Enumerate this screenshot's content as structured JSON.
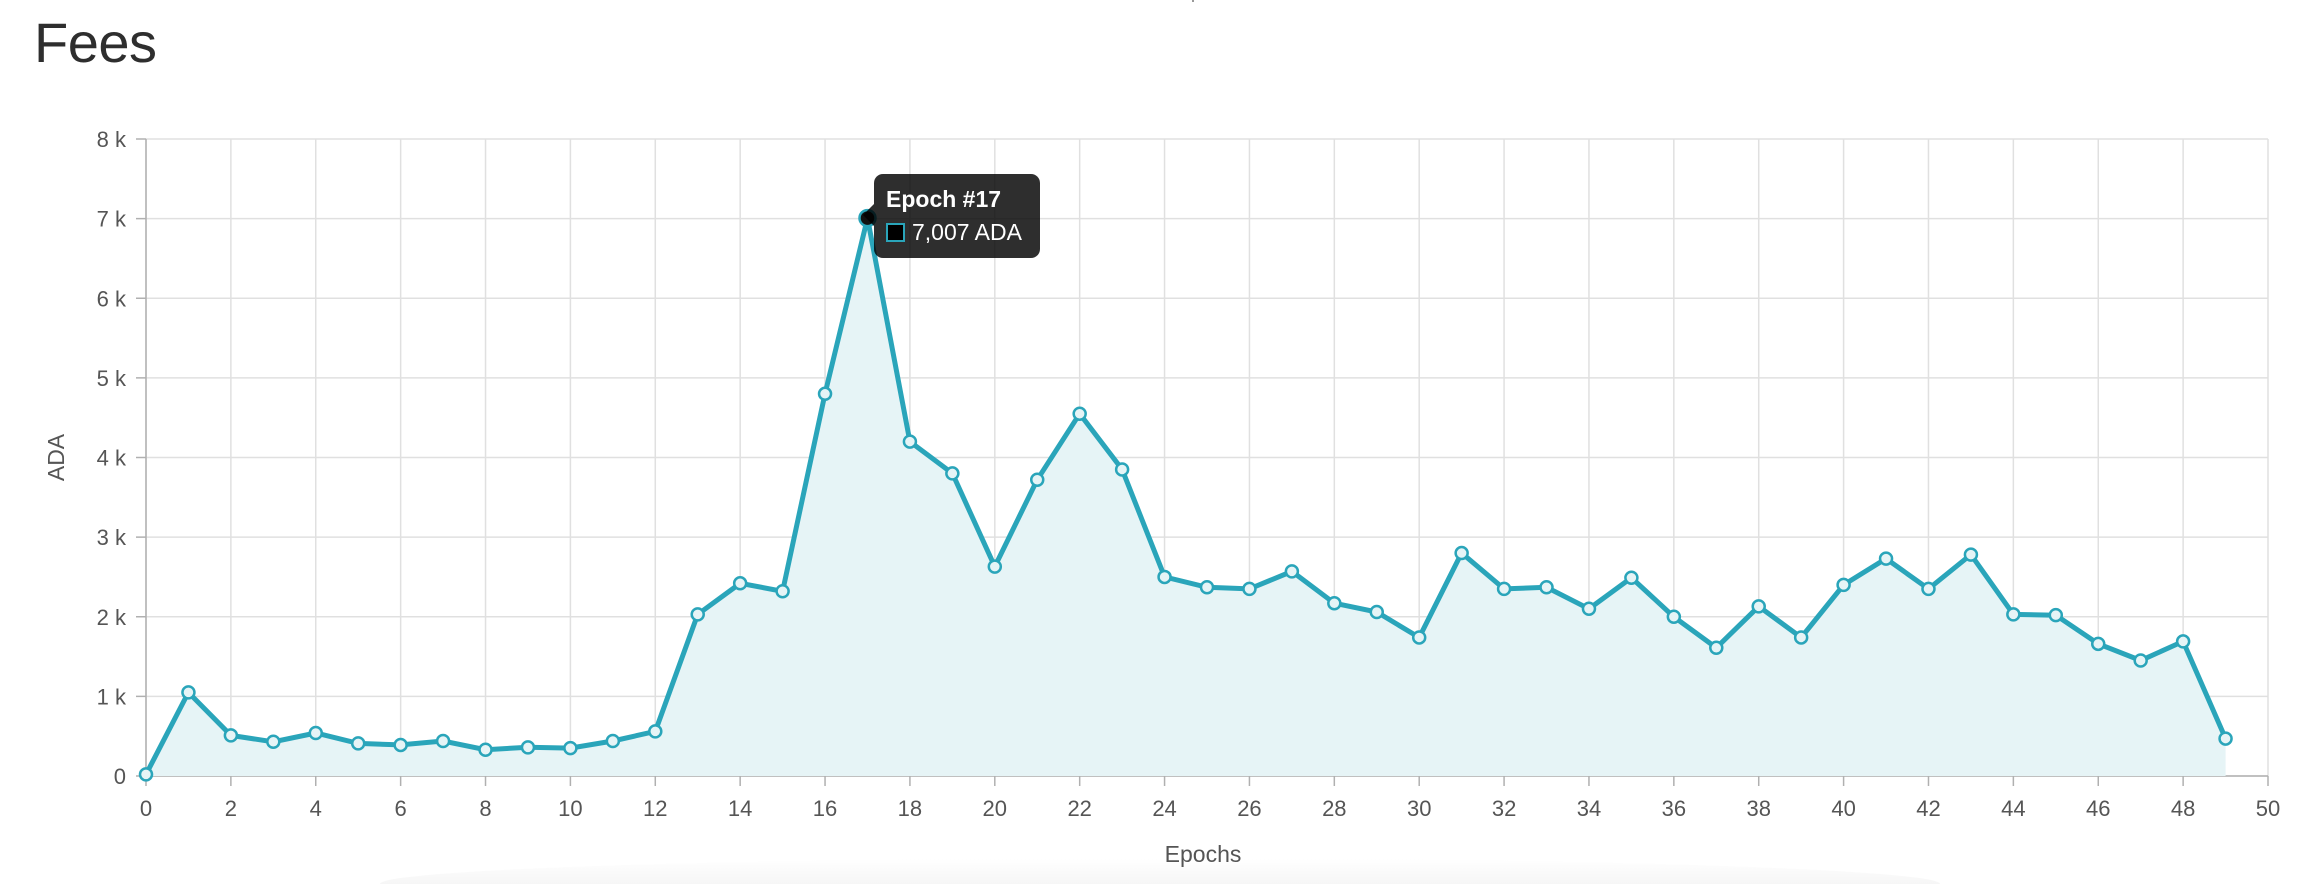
{
  "page": {
    "title": "Fees"
  },
  "tooltip": {
    "title": "Epoch #17",
    "body": "7,007 ADA"
  },
  "colors": {
    "line": "#2aa5ba",
    "fill": "#e6f4f6",
    "grid": "#e0e0e0",
    "axis": "#b0b0b0"
  },
  "chart_data": {
    "type": "area",
    "title": "",
    "xlabel": "Epochs",
    "ylabel": "ADA",
    "x": [
      0,
      1,
      2,
      3,
      4,
      5,
      6,
      7,
      8,
      9,
      10,
      11,
      12,
      13,
      14,
      15,
      16,
      17,
      18,
      19,
      20,
      21,
      22,
      23,
      24,
      25,
      26,
      27,
      28,
      29,
      30,
      31,
      32,
      33,
      34,
      35,
      36,
      37,
      38,
      39,
      40,
      41,
      42,
      43,
      44,
      45,
      46,
      47,
      48,
      49
    ],
    "series": [
      {
        "values": [
          20,
          1050,
          510,
          430,
          540,
          410,
          390,
          440,
          330,
          360,
          350,
          440,
          560,
          2030,
          2420,
          2320,
          4800,
          7007,
          4200,
          3800,
          2630,
          3720,
          4550,
          3850,
          2500,
          2370,
          2350,
          2570,
          2170,
          2060,
          1740,
          2800,
          2350,
          2370,
          2100,
          2490,
          2000,
          1610,
          2130,
          1740,
          2400,
          2730,
          2350,
          2780,
          2030,
          2020,
          1660,
          1450,
          1690,
          470
        ]
      }
    ],
    "xlim": [
      0,
      50
    ],
    "ylim": [
      0,
      8000
    ],
    "xticks": [
      0,
      2,
      4,
      6,
      8,
      10,
      12,
      14,
      16,
      18,
      20,
      22,
      24,
      26,
      28,
      30,
      32,
      34,
      36,
      38,
      40,
      42,
      44,
      46,
      48,
      50
    ],
    "yticks": [
      0,
      1000,
      2000,
      3000,
      4000,
      5000,
      6000,
      7000,
      8000
    ],
    "ytick_labels": [
      "0",
      "1 k",
      "2 k",
      "3 k",
      "4 k",
      "5 k",
      "6 k",
      "7 k",
      "8 k"
    ],
    "grid": true,
    "highlighted_index": 17
  }
}
